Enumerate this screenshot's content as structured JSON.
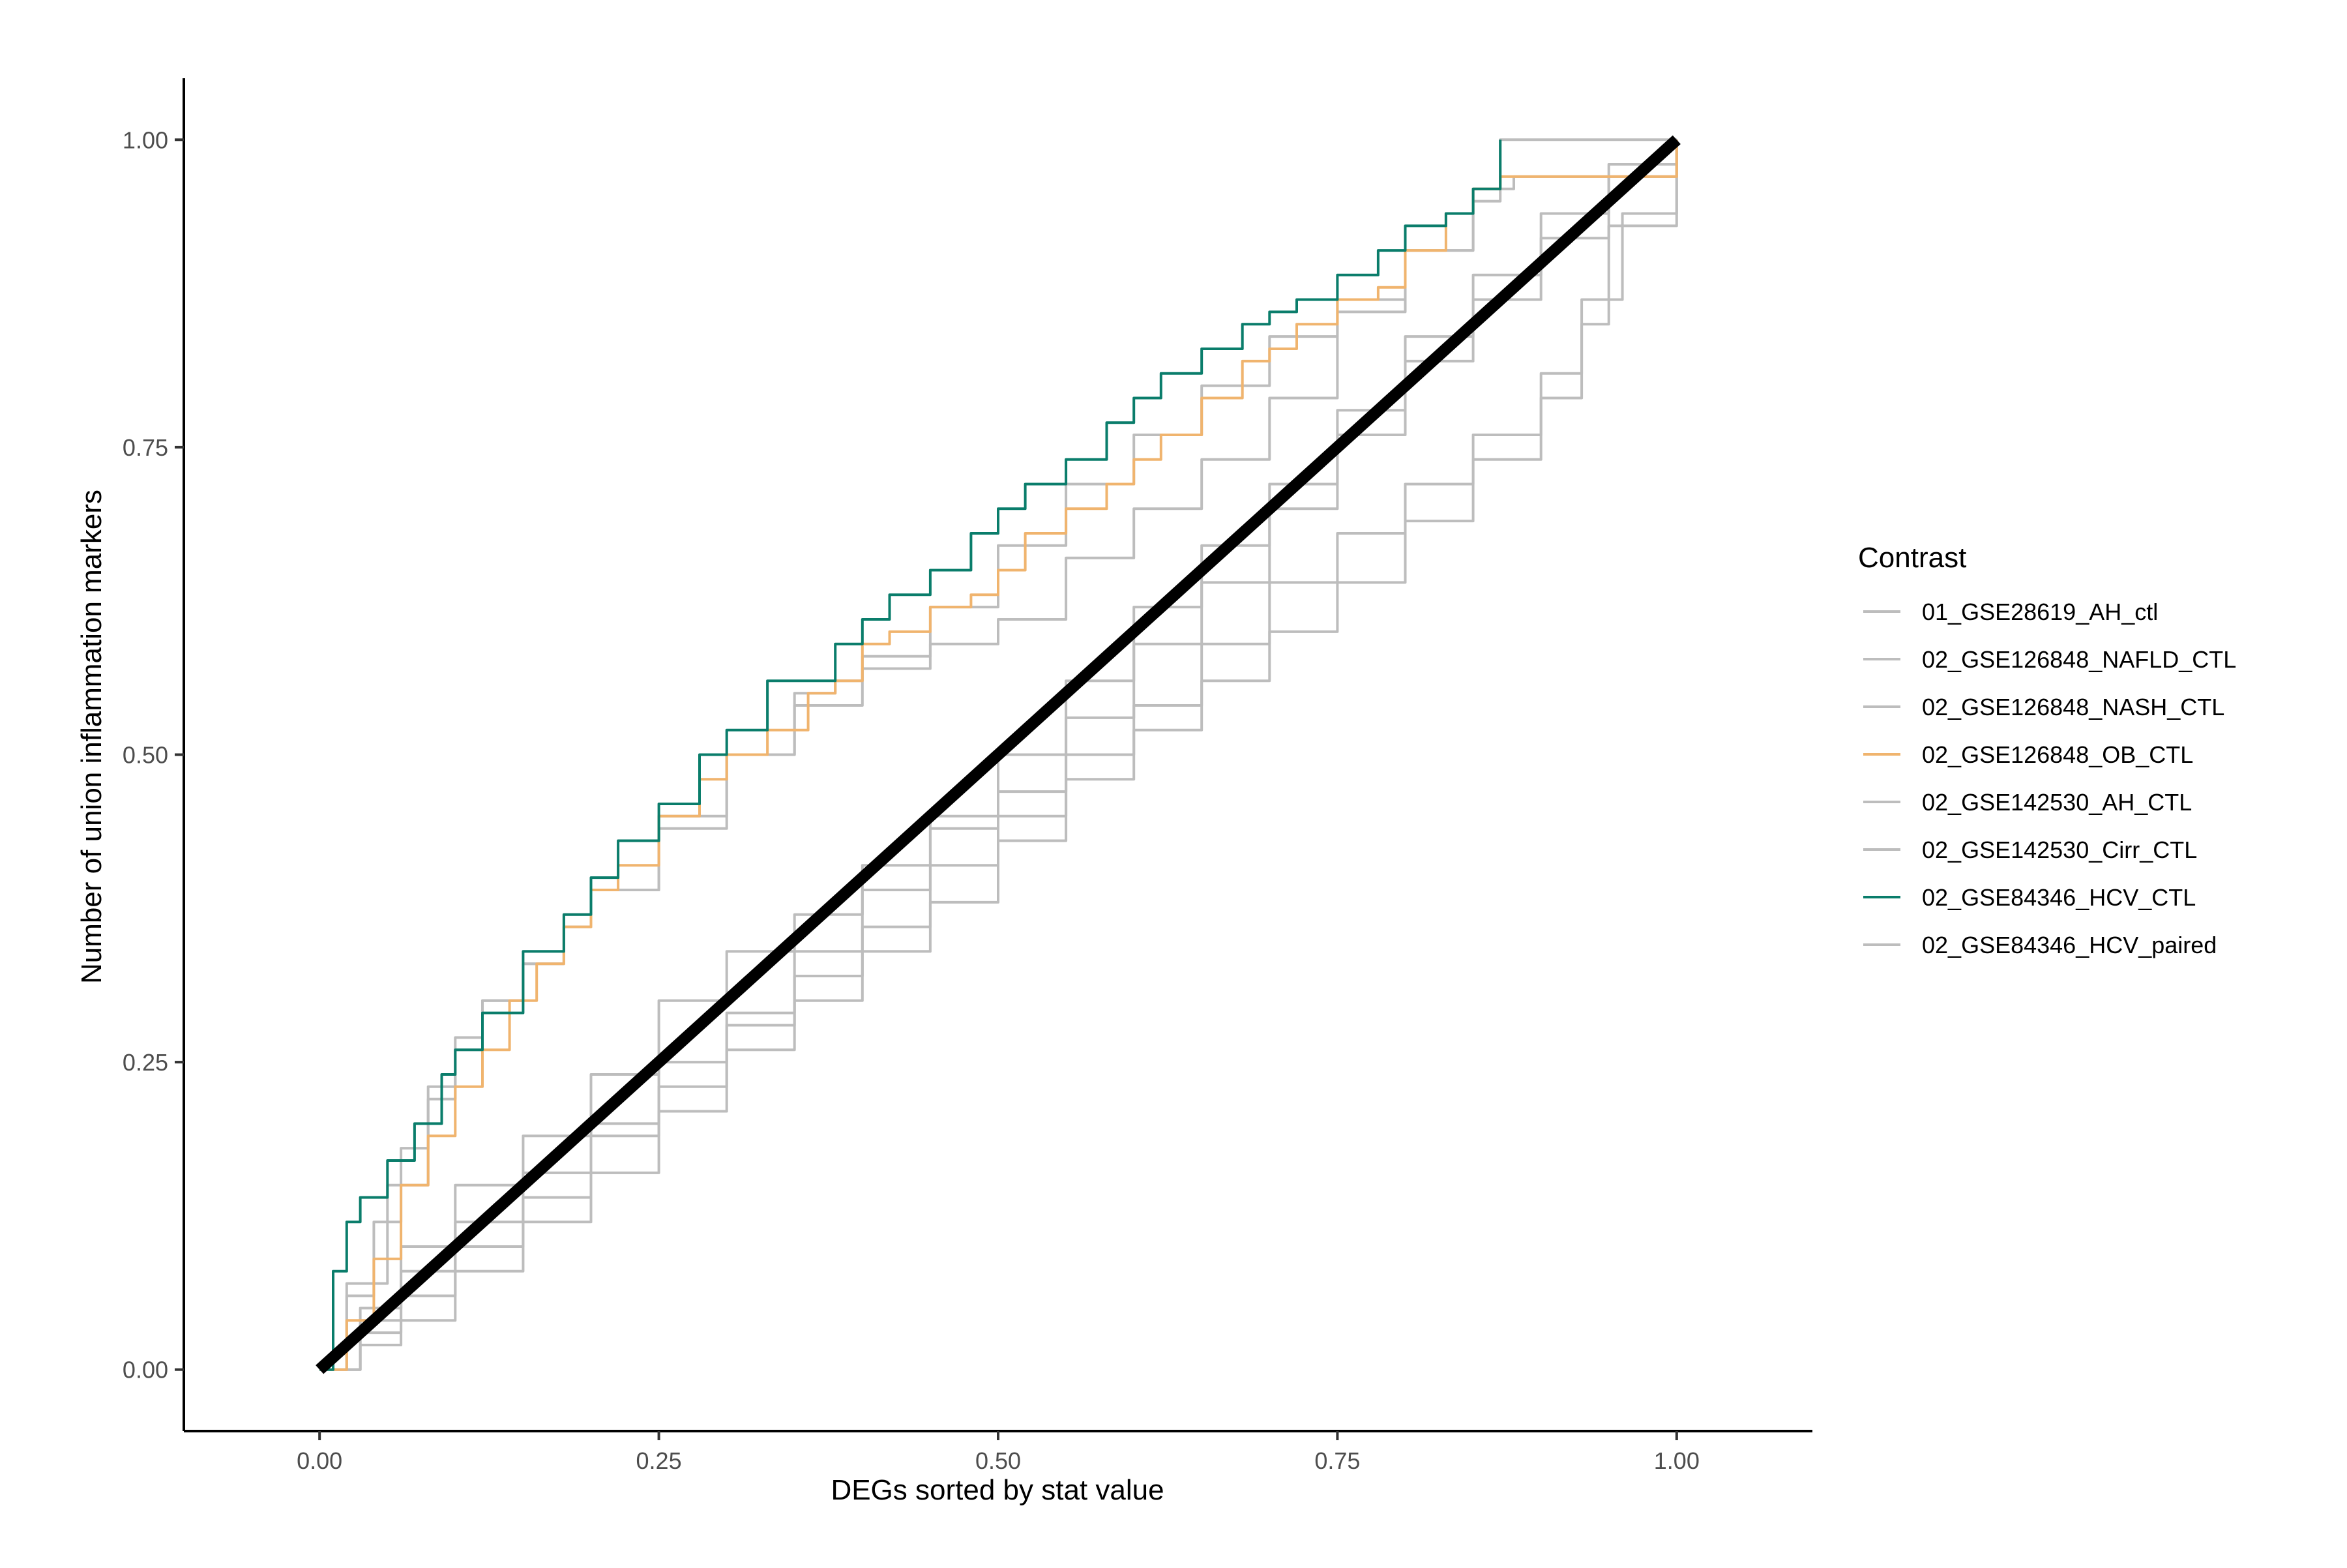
{
  "chart_data": {
    "type": "line",
    "title": "",
    "xlabel": "DEGs sorted by stat value",
    "ylabel": "Number of union inflammation markers",
    "xlim": [
      -0.1,
      1.1
    ],
    "ylim": [
      -0.05,
      1.05
    ],
    "x_ticks": [
      0.0,
      0.25,
      0.5,
      0.75,
      1.0
    ],
    "x_tick_labels": [
      "0.00",
      "0.25",
      "0.50",
      "0.75",
      "1.00"
    ],
    "y_ticks": [
      0.0,
      0.25,
      0.5,
      0.75,
      1.0
    ],
    "y_tick_labels": [
      "0.00",
      "0.25",
      "0.50",
      "0.75",
      "1.00"
    ],
    "grid": false,
    "legend": {
      "title": "Contrast",
      "placement": "right"
    },
    "reference_line": {
      "x": [
        0,
        1
      ],
      "y": [
        0,
        1
      ],
      "color": "#000000"
    },
    "series": [
      {
        "name": "01_GSE28619_AH_ctl",
        "color": "#bdbdbd",
        "x": [
          0,
          0.02,
          0.05,
          0.08,
          0.1,
          0.12,
          0.15,
          0.18,
          0.2,
          0.25,
          0.3,
          0.35,
          0.4,
          0.45,
          0.5,
          0.55,
          0.6,
          0.65,
          0.7,
          0.75,
          0.8,
          0.85,
          0.88,
          1.0
        ],
        "y": [
          0,
          0.07,
          0.15,
          0.22,
          0.26,
          0.3,
          0.33,
          0.36,
          0.39,
          0.44,
          0.5,
          0.54,
          0.57,
          0.59,
          0.61,
          0.66,
          0.7,
          0.74,
          0.79,
          0.86,
          0.91,
          0.96,
          0.97,
          1.0
        ]
      },
      {
        "name": "02_GSE126848_NAFLD_CTL",
        "color": "#bdbdbd",
        "x": [
          0,
          0.02,
          0.04,
          0.06,
          0.08,
          0.1,
          0.12,
          0.15,
          0.18,
          0.2,
          0.25,
          0.3,
          0.35,
          0.38,
          0.4,
          0.45,
          0.5,
          0.55,
          0.6,
          0.65,
          0.7,
          0.75,
          0.8,
          0.85,
          0.87,
          1.0
        ],
        "y": [
          0,
          0.06,
          0.12,
          0.18,
          0.23,
          0.27,
          0.3,
          0.33,
          0.37,
          0.39,
          0.45,
          0.5,
          0.55,
          0.56,
          0.58,
          0.62,
          0.67,
          0.72,
          0.76,
          0.8,
          0.84,
          0.87,
          0.91,
          0.95,
          1.0,
          1.0
        ]
      },
      {
        "name": "02_GSE126848_NASH_CTL",
        "color": "#bdbdbd",
        "x": [
          0,
          0.03,
          0.06,
          0.1,
          0.15,
          0.2,
          0.25,
          0.3,
          0.35,
          0.4,
          0.45,
          0.5,
          0.55,
          0.6,
          0.65,
          0.7,
          0.75,
          0.8,
          0.85,
          0.9,
          0.95,
          1.0
        ],
        "y": [
          0,
          0.05,
          0.1,
          0.15,
          0.19,
          0.24,
          0.3,
          0.34,
          0.37,
          0.41,
          0.44,
          0.47,
          0.53,
          0.59,
          0.64,
          0.7,
          0.76,
          0.82,
          0.87,
          0.92,
          0.97,
          1.0
        ]
      },
      {
        "name": "02_GSE126848_OB_CTL",
        "color": "#f0b46e",
        "x": [
          0,
          0.02,
          0.04,
          0.06,
          0.08,
          0.1,
          0.12,
          0.14,
          0.16,
          0.18,
          0.2,
          0.22,
          0.25,
          0.28,
          0.3,
          0.33,
          0.36,
          0.38,
          0.4,
          0.42,
          0.45,
          0.48,
          0.5,
          0.52,
          0.55,
          0.58,
          0.6,
          0.62,
          0.65,
          0.68,
          0.7,
          0.72,
          0.75,
          0.78,
          0.8,
          0.83,
          0.85,
          0.87,
          1.0
        ],
        "y": [
          0,
          0.04,
          0.09,
          0.15,
          0.19,
          0.23,
          0.26,
          0.3,
          0.33,
          0.36,
          0.39,
          0.41,
          0.45,
          0.48,
          0.5,
          0.52,
          0.55,
          0.56,
          0.59,
          0.6,
          0.62,
          0.63,
          0.65,
          0.68,
          0.7,
          0.72,
          0.74,
          0.76,
          0.79,
          0.82,
          0.83,
          0.85,
          0.87,
          0.88,
          0.91,
          0.94,
          0.96,
          0.97,
          1.0
        ]
      },
      {
        "name": "02_GSE142530_AH_CTL",
        "color": "#bdbdbd",
        "x": [
          0,
          0.03,
          0.06,
          0.1,
          0.15,
          0.2,
          0.25,
          0.3,
          0.35,
          0.4,
          0.45,
          0.5,
          0.55,
          0.6,
          0.65,
          0.7,
          0.75,
          0.8,
          0.85,
          0.9,
          0.93,
          0.96,
          1.0
        ],
        "y": [
          0,
          0.03,
          0.06,
          0.1,
          0.14,
          0.19,
          0.23,
          0.28,
          0.32,
          0.36,
          0.41,
          0.45,
          0.5,
          0.54,
          0.59,
          0.64,
          0.68,
          0.72,
          0.76,
          0.81,
          0.87,
          0.94,
          1.0
        ]
      },
      {
        "name": "02_GSE142530_Cirr_CTL",
        "color": "#bdbdbd",
        "x": [
          0,
          0.03,
          0.06,
          0.1,
          0.15,
          0.2,
          0.25,
          0.3,
          0.35,
          0.4,
          0.45,
          0.5,
          0.55,
          0.6,
          0.65,
          0.7,
          0.75,
          0.8,
          0.85,
          0.9,
          0.95,
          1.0
        ],
        "y": [
          0,
          0.04,
          0.08,
          0.12,
          0.16,
          0.2,
          0.25,
          0.29,
          0.34,
          0.39,
          0.45,
          0.5,
          0.56,
          0.62,
          0.67,
          0.72,
          0.78,
          0.84,
          0.89,
          0.94,
          0.98,
          1.0
        ]
      },
      {
        "name": "02_GSE84346_HCV_CTL",
        "color": "#0a7d6b",
        "x": [
          0,
          0.01,
          0.02,
          0.03,
          0.05,
          0.07,
          0.09,
          0.1,
          0.12,
          0.15,
          0.18,
          0.2,
          0.22,
          0.25,
          0.28,
          0.3,
          0.33,
          0.36,
          0.38,
          0.4,
          0.42,
          0.45,
          0.48,
          0.5,
          0.52,
          0.55,
          0.58,
          0.6,
          0.62,
          0.65,
          0.68,
          0.7,
          0.72,
          0.75,
          0.78,
          0.8,
          0.83,
          0.85,
          0.87
        ],
        "y": [
          0,
          0.08,
          0.12,
          0.14,
          0.17,
          0.2,
          0.24,
          0.26,
          0.29,
          0.34,
          0.37,
          0.4,
          0.43,
          0.46,
          0.5,
          0.52,
          0.56,
          0.56,
          0.59,
          0.61,
          0.63,
          0.65,
          0.68,
          0.7,
          0.72,
          0.74,
          0.77,
          0.79,
          0.81,
          0.83,
          0.85,
          0.86,
          0.87,
          0.89,
          0.91,
          0.93,
          0.94,
          0.96,
          1.0
        ]
      },
      {
        "name": "02_GSE84346_HCV_paired",
        "color": "#bdbdbd",
        "x": [
          0,
          0.03,
          0.06,
          0.1,
          0.15,
          0.2,
          0.25,
          0.3,
          0.35,
          0.4,
          0.45,
          0.5,
          0.55,
          0.6,
          0.65,
          0.7,
          0.75,
          0.8,
          0.85,
          0.9,
          0.93,
          0.95,
          1.0
        ],
        "y": [
          0,
          0.02,
          0.04,
          0.08,
          0.12,
          0.16,
          0.21,
          0.26,
          0.3,
          0.34,
          0.38,
          0.43,
          0.48,
          0.52,
          0.56,
          0.6,
          0.64,
          0.69,
          0.74,
          0.79,
          0.85,
          0.93,
          1.0
        ]
      }
    ]
  }
}
